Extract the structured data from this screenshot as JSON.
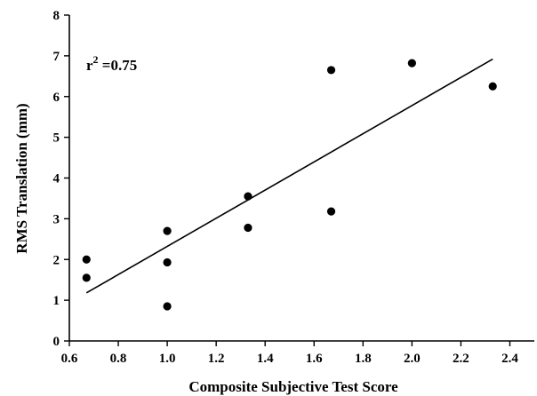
{
  "chart_data": {
    "type": "scatter",
    "xlabel": "Composite Subjective Test Score",
    "ylabel": "RMS Translation (mm)",
    "xlim": [
      0.6,
      2.5
    ],
    "ylim": [
      0,
      8
    ],
    "xticks": [
      "0.6",
      "0.8",
      "1.0",
      "1.2",
      "1.4",
      "1.6",
      "1.8",
      "2.0",
      "2.2",
      "2.4"
    ],
    "yticks": [
      "0",
      "1",
      "2",
      "3",
      "4",
      "5",
      "6",
      "7",
      "8"
    ],
    "grid": false,
    "annotation": {
      "base": "r",
      "sup": "2",
      "rest": " =0.75"
    },
    "points": [
      {
        "x": 0.67,
        "y": 2.0
      },
      {
        "x": 0.67,
        "y": 1.55
      },
      {
        "x": 1.0,
        "y": 2.7
      },
      {
        "x": 1.0,
        "y": 1.93
      },
      {
        "x": 1.0,
        "y": 0.85
      },
      {
        "x": 1.33,
        "y": 3.55
      },
      {
        "x": 1.33,
        "y": 2.78
      },
      {
        "x": 1.67,
        "y": 6.65
      },
      {
        "x": 1.67,
        "y": 3.18
      },
      {
        "x": 2.0,
        "y": 6.82
      },
      {
        "x": 2.33,
        "y": 6.25
      }
    ],
    "fit_line": {
      "x": [
        0.67,
        2.33
      ],
      "y": [
        1.18,
        6.92
      ]
    }
  }
}
